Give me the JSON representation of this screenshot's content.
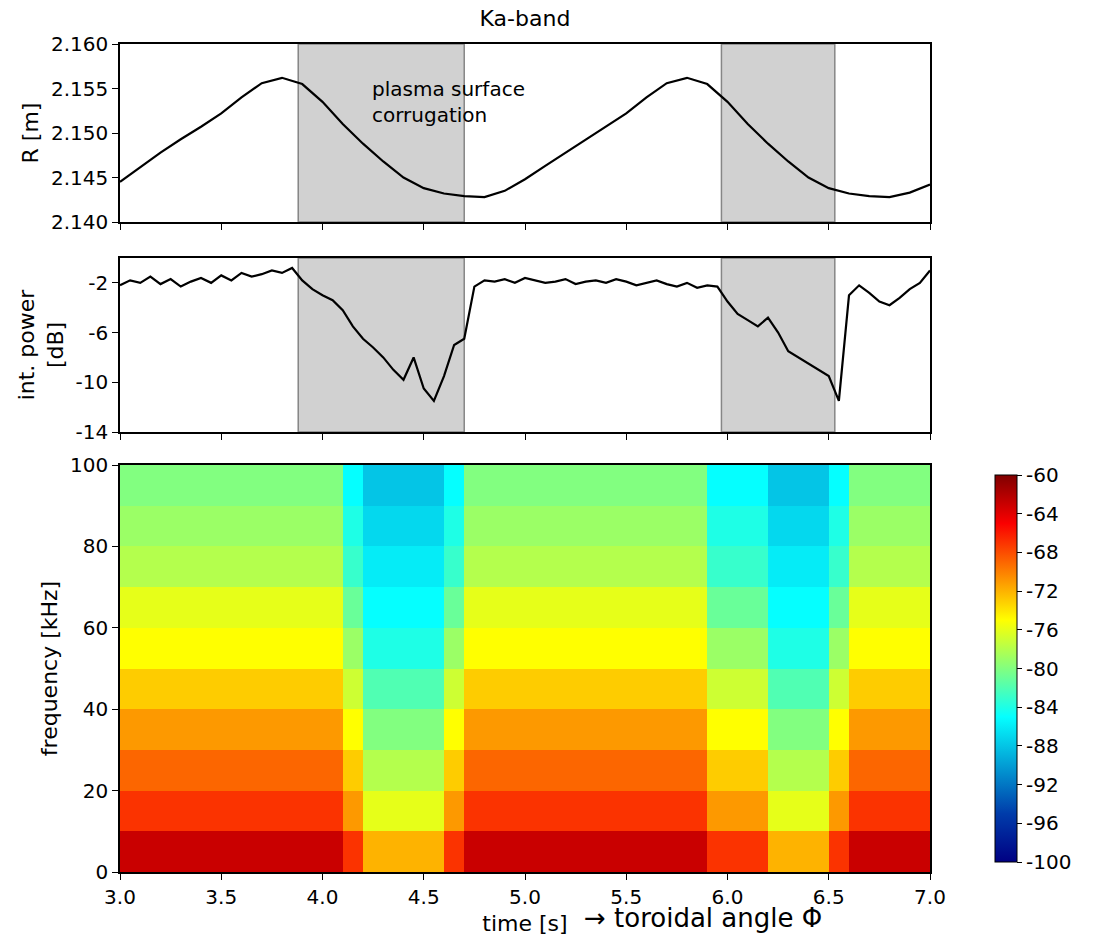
{
  "chart_data": [
    {
      "type": "line",
      "title": "Ka-band",
      "ylabel": "R [m]",
      "color": "black",
      "tick_labels": "y",
      "x": [
        3.0,
        3.1,
        3.2,
        3.3,
        3.4,
        3.5,
        3.6,
        3.7,
        3.8,
        3.9,
        4.0,
        4.1,
        4.2,
        4.3,
        4.4,
        4.5,
        4.6,
        4.7,
        4.8,
        4.9,
        5.0,
        5.1,
        5.2,
        5.3,
        5.4,
        5.5,
        5.6,
        5.7,
        5.8,
        5.9,
        6.0,
        6.1,
        6.2,
        6.3,
        6.4,
        6.5,
        6.6,
        6.7,
        6.8,
        6.9,
        7.0
      ],
      "values": [
        2.1445,
        2.1462,
        2.1478,
        2.1493,
        2.1507,
        2.1522,
        2.154,
        2.1556,
        2.1562,
        2.1555,
        2.1535,
        2.151,
        2.1488,
        2.1468,
        2.145,
        2.1438,
        2.1432,
        2.1429,
        2.1428,
        2.1435,
        2.1448,
        2.1463,
        2.1478,
        2.1493,
        2.1507,
        2.1522,
        2.154,
        2.1556,
        2.1562,
        2.1555,
        2.1535,
        2.151,
        2.1488,
        2.1468,
        2.145,
        2.1438,
        2.1432,
        2.1429,
        2.1428,
        2.1433,
        2.1442
      ],
      "xlim": [
        3.0,
        7.0
      ],
      "xticks": [
        {
          "value": 3,
          "label": "3.0"
        },
        3.5,
        {
          "value": 4,
          "label": "4.0"
        },
        4.5,
        {
          "value": 5,
          "label": "5.0"
        },
        5.5,
        {
          "value": 6,
          "label": "6.0"
        },
        6.5,
        {
          "value": 7,
          "label": "7.0"
        }
      ],
      "ylim": [
        2.14,
        2.16
      ],
      "yticks": [
        {
          "value": 2.14,
          "label": "2.140"
        },
        {
          "value": 2.145,
          "label": "2.145"
        },
        {
          "value": 2.15,
          "label": "2.150"
        },
        {
          "value": 2.155,
          "label": "2.155"
        },
        {
          "value": 2.16,
          "label": "2.160"
        }
      ],
      "shaded": [
        [
          3.88,
          4.7
        ],
        [
          5.97,
          6.53
        ]
      ],
      "annotations": [
        {
          "text": [
            "plasma surface",
            "corrugation"
          ],
          "x": 4.62,
          "y": 2.1535
        }
      ]
    },
    {
      "type": "line",
      "ylabel": [
        "int. power",
        "[dB]"
      ],
      "color": "black",
      "tick_labels": "y",
      "x": [
        3.0,
        3.05,
        3.1,
        3.15,
        3.2,
        3.25,
        3.3,
        3.35,
        3.4,
        3.45,
        3.5,
        3.55,
        3.6,
        3.65,
        3.7,
        3.75,
        3.8,
        3.85,
        3.9,
        3.95,
        4.0,
        4.05,
        4.1,
        4.15,
        4.2,
        4.25,
        4.3,
        4.35,
        4.4,
        4.45,
        4.5,
        4.55,
        4.6,
        4.65,
        4.7,
        4.75,
        4.8,
        4.85,
        4.9,
        4.95,
        5.0,
        5.05,
        5.1,
        5.15,
        5.2,
        5.25,
        5.3,
        5.35,
        5.4,
        5.45,
        5.5,
        5.55,
        5.6,
        5.65,
        5.7,
        5.75,
        5.8,
        5.85,
        5.9,
        5.95,
        6.0,
        6.05,
        6.1,
        6.15,
        6.2,
        6.25,
        6.3,
        6.35,
        6.4,
        6.45,
        6.5,
        6.55,
        6.6,
        6.65,
        6.7,
        6.75,
        6.8,
        6.85,
        6.9,
        6.95,
        7.0
      ],
      "values": [
        -2.2,
        -1.8,
        -2.0,
        -1.5,
        -2.1,
        -1.7,
        -2.3,
        -1.9,
        -1.6,
        -2.0,
        -1.4,
        -1.8,
        -1.2,
        -1.5,
        -1.3,
        -1.0,
        -1.2,
        -0.8,
        -1.8,
        -2.5,
        -3.0,
        -3.4,
        -4.2,
        -5.5,
        -6.5,
        -7.2,
        -8.0,
        -9.0,
        -9.8,
        -8.0,
        -10.5,
        -11.5,
        -9.5,
        -7.0,
        -6.5,
        -2.3,
        -1.8,
        -1.9,
        -1.7,
        -2.0,
        -1.6,
        -1.8,
        -2.0,
        -1.9,
        -1.7,
        -2.1,
        -1.9,
        -1.8,
        -2.0,
        -1.7,
        -1.9,
        -2.2,
        -2.0,
        -1.8,
        -2.1,
        -2.3,
        -2.0,
        -2.4,
        -2.2,
        -2.3,
        -3.5,
        -4.5,
        -5.0,
        -5.5,
        -4.8,
        -6.0,
        -7.5,
        -8.0,
        -8.5,
        -9.0,
        -9.5,
        -11.5,
        -3.0,
        -2.2,
        -2.8,
        -3.5,
        -3.8,
        -3.2,
        -2.5,
        -2.0,
        -1.0
      ],
      "xlim": [
        3.0,
        7.0
      ],
      "xticks": [
        {
          "value": 3,
          "label": "3.0"
        },
        3.5,
        {
          "value": 4,
          "label": "4.0"
        },
        4.5,
        {
          "value": 5,
          "label": "5.0"
        },
        5.5,
        {
          "value": 6,
          "label": "6.0"
        },
        6.5,
        {
          "value": 7,
          "label": "7.0"
        }
      ],
      "ylim": [
        -14,
        0
      ],
      "yticks": [
        -14,
        -10,
        -6,
        -2
      ],
      "shaded": [
        [
          3.88,
          4.7
        ],
        [
          5.97,
          6.53
        ]
      ]
    },
    {
      "type": "heatmap",
      "xlabel": [
        "time [s]",
        "→ toroidal angle Φ"
      ],
      "ylabel": "frequency [kHz]",
      "color": "Jet",
      "x": [
        3.05,
        3.15,
        3.25,
        3.35,
        3.45,
        3.55,
        3.65,
        3.75,
        3.85,
        3.95,
        4.05,
        4.15,
        4.25,
        4.35,
        4.45,
        4.55,
        4.65,
        4.75,
        4.85,
        4.95,
        5.05,
        5.15,
        5.25,
        5.35,
        5.45,
        5.55,
        5.65,
        5.75,
        5.85,
        5.95,
        6.05,
        6.15,
        6.25,
        6.35,
        6.45,
        6.55,
        6.65,
        6.75,
        6.85,
        6.95
      ],
      "y": [
        5,
        15,
        25,
        35,
        45,
        55,
        65,
        75,
        85,
        95
      ],
      "z": [
        [
          -63,
          -63,
          -63,
          -63,
          -63,
          -63,
          -63,
          -63,
          -63,
          -63,
          -63,
          -67,
          -72,
          -72,
          -72,
          -72,
          -67,
          -63,
          -63,
          -63,
          -63,
          -63,
          -63,
          -63,
          -63,
          -63,
          -63,
          -63,
          -63,
          -67,
          -67,
          -67,
          -72,
          -72,
          -72,
          -67,
          -63,
          -63,
          -63,
          -63
        ],
        [
          -67,
          -67,
          -67,
          -67,
          -67,
          -67,
          -67,
          -67,
          -67,
          -67,
          -67,
          -71,
          -76,
          -76,
          -76,
          -76,
          -71,
          -67,
          -67,
          -67,
          -67,
          -67,
          -67,
          -67,
          -67,
          -67,
          -67,
          -67,
          -67,
          -71,
          -71,
          -71,
          -76,
          -76,
          -76,
          -71,
          -67,
          -67,
          -67,
          -67
        ],
        [
          -69,
          -69,
          -69,
          -69,
          -69,
          -69,
          -69,
          -69,
          -69,
          -69,
          -69,
          -73,
          -78,
          -78,
          -78,
          -78,
          -73,
          -69,
          -69,
          -69,
          -69,
          -69,
          -69,
          -69,
          -69,
          -69,
          -69,
          -69,
          -69,
          -73,
          -73,
          -73,
          -78,
          -78,
          -78,
          -73,
          -69,
          -69,
          -69,
          -69
        ],
        [
          -71,
          -71,
          -71,
          -71,
          -71,
          -71,
          -71,
          -71,
          -71,
          -71,
          -71,
          -75,
          -80,
          -80,
          -80,
          -80,
          -75,
          -71,
          -71,
          -71,
          -71,
          -71,
          -71,
          -71,
          -71,
          -71,
          -71,
          -71,
          -71,
          -75,
          -75,
          -75,
          -80,
          -80,
          -80,
          -75,
          -71,
          -71,
          -71,
          -71
        ],
        [
          -73,
          -73,
          -73,
          -73,
          -73,
          -73,
          -73,
          -73,
          -73,
          -73,
          -73,
          -77,
          -82,
          -82,
          -82,
          -82,
          -77,
          -73,
          -73,
          -73,
          -73,
          -73,
          -73,
          -73,
          -73,
          -73,
          -73,
          -73,
          -73,
          -77,
          -77,
          -77,
          -82,
          -82,
          -82,
          -77,
          -73,
          -73,
          -73,
          -73
        ],
        [
          -75,
          -75,
          -75,
          -75,
          -75,
          -75,
          -75,
          -75,
          -75,
          -75,
          -75,
          -79,
          -84,
          -84,
          -84,
          -84,
          -79,
          -75,
          -75,
          -75,
          -75,
          -75,
          -75,
          -75,
          -75,
          -75,
          -75,
          -75,
          -75,
          -79,
          -79,
          -79,
          -84,
          -84,
          -84,
          -79,
          -75,
          -75,
          -75,
          -75
        ],
        [
          -76,
          -76,
          -76,
          -76,
          -76,
          -76,
          -76,
          -76,
          -76,
          -76,
          -76,
          -81,
          -85,
          -85,
          -85,
          -85,
          -81,
          -76,
          -76,
          -76,
          -76,
          -76,
          -76,
          -76,
          -76,
          -76,
          -76,
          -76,
          -76,
          -81,
          -81,
          -81,
          -85,
          -85,
          -85,
          -81,
          -76,
          -76,
          -76,
          -76
        ],
        [
          -78,
          -78,
          -78,
          -78,
          -78,
          -78,
          -78,
          -78,
          -78,
          -78,
          -78,
          -83,
          -86,
          -86,
          -86,
          -86,
          -83,
          -78,
          -78,
          -78,
          -78,
          -78,
          -78,
          -78,
          -78,
          -78,
          -78,
          -78,
          -78,
          -83,
          -83,
          -83,
          -86,
          -86,
          -86,
          -83,
          -78,
          -78,
          -78,
          -78
        ],
        [
          -79,
          -79,
          -79,
          -79,
          -79,
          -79,
          -79,
          -79,
          -79,
          -79,
          -79,
          -84,
          -87,
          -87,
          -87,
          -87,
          -84,
          -79,
          -79,
          -79,
          -79,
          -79,
          -79,
          -79,
          -79,
          -79,
          -79,
          -79,
          -79,
          -84,
          -84,
          -84,
          -87,
          -87,
          -87,
          -84,
          -79,
          -79,
          -79,
          -79
        ],
        [
          -80,
          -80,
          -80,
          -80,
          -80,
          -80,
          -80,
          -80,
          -80,
          -80,
          -80,
          -85,
          -88,
          -88,
          -88,
          -88,
          -85,
          -80,
          -80,
          -80,
          -80,
          -80,
          -80,
          -80,
          -80,
          -80,
          -80,
          -80,
          -80,
          -85,
          -85,
          -85,
          -88,
          -88,
          -88,
          -85,
          -80,
          -80,
          -80,
          -80
        ]
      ],
      "xlim": [
        3.0,
        7.0
      ],
      "xticks": [
        {
          "value": 3,
          "label": "3.0"
        },
        3.5,
        {
          "value": 4,
          "label": "4.0"
        },
        4.5,
        {
          "value": 5,
          "label": "5.0"
        },
        5.5,
        {
          "value": 6,
          "label": "6.0"
        },
        6.5,
        {
          "value": 7,
          "label": "7.0"
        }
      ],
      "ylim": [
        0,
        100
      ],
      "yticks": [
        0,
        20,
        40,
        60,
        80,
        100
      ],
      "zlim": [
        -100,
        -60
      ],
      "zticks": [
        -60,
        -64,
        -68,
        -72,
        -76,
        -80,
        -84,
        -88,
        -92,
        -96,
        -100
      ]
    }
  ]
}
